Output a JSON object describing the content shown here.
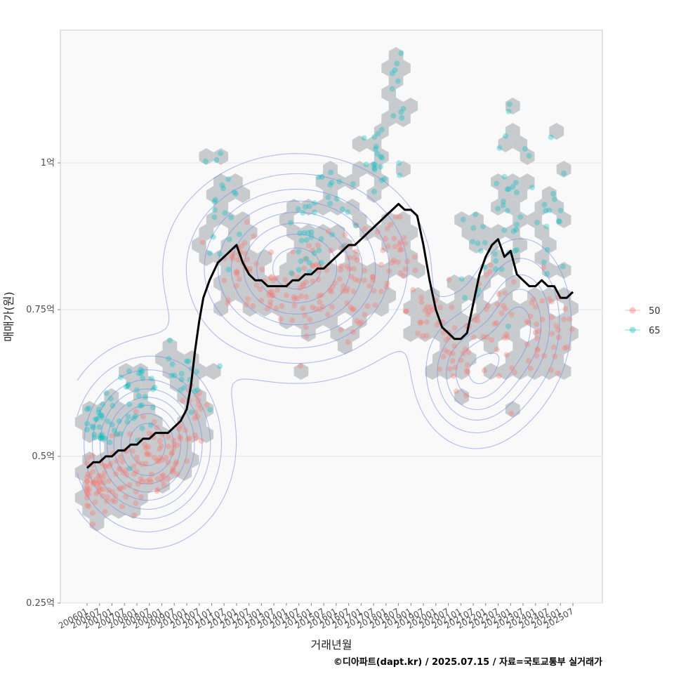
{
  "chart_data": {
    "type": "scatter",
    "title": "",
    "xlabel": "거래년월",
    "ylabel": "매매가(원)",
    "caption": "©디아파트(dapt.kr) / 2025.07.15 / 자료=국토교통부 실거래가",
    "y_unit": "억",
    "ylim": [
      0.25,
      1.22
    ],
    "y_ticks": [
      {
        "value": 0.25,
        "label": "0.25억"
      },
      {
        "value": 0.5,
        "label": "0.5억"
      },
      {
        "value": 0.75,
        "label": "0.75억"
      },
      {
        "value": 1.0,
        "label": "1억"
      }
    ],
    "x_start": "2006-01",
    "x_end": "2025-07",
    "x_tick_labels": [
      "200601",
      "200607",
      "200701",
      "200707",
      "200801",
      "200807",
      "200901",
      "200907",
      "201001",
      "201007",
      "201101",
      "201107",
      "201201",
      "201207",
      "201301",
      "201307",
      "201401",
      "201407",
      "201501",
      "201507",
      "201601",
      "201607",
      "201701",
      "201707",
      "201801",
      "201807",
      "201901",
      "201907",
      "202001",
      "202007",
      "202101",
      "202107",
      "202201",
      "202207",
      "202301",
      "202307",
      "202401",
      "202407",
      "202501",
      "202507"
    ],
    "legend": {
      "position": "right",
      "entries": [
        {
          "label": "50",
          "color": "#F8766D"
        },
        {
          "label": "65",
          "color": "#00BFC4"
        }
      ]
    },
    "trend_line": {
      "name": "moving average",
      "color": "#000000",
      "points": [
        [
          "2006-01",
          0.48
        ],
        [
          "2006-04",
          0.49
        ],
        [
          "2006-07",
          0.49
        ],
        [
          "2006-10",
          0.5
        ],
        [
          "2007-01",
          0.5
        ],
        [
          "2007-04",
          0.51
        ],
        [
          "2007-07",
          0.51
        ],
        [
          "2007-10",
          0.52
        ],
        [
          "2008-01",
          0.52
        ],
        [
          "2008-04",
          0.53
        ],
        [
          "2008-07",
          0.53
        ],
        [
          "2008-10",
          0.54
        ],
        [
          "2009-01",
          0.54
        ],
        [
          "2009-04",
          0.54
        ],
        [
          "2009-07",
          0.55
        ],
        [
          "2009-10",
          0.56
        ],
        [
          "2010-01",
          0.58
        ],
        [
          "2010-03",
          0.62
        ],
        [
          "2010-05",
          0.68
        ],
        [
          "2010-07",
          0.73
        ],
        [
          "2010-09",
          0.77
        ],
        [
          "2010-12",
          0.8
        ],
        [
          "2011-04",
          0.83
        ],
        [
          "2011-07",
          0.84
        ],
        [
          "2011-10",
          0.85
        ],
        [
          "2012-01",
          0.86
        ],
        [
          "2012-04",
          0.83
        ],
        [
          "2012-07",
          0.81
        ],
        [
          "2012-10",
          0.8
        ],
        [
          "2013-01",
          0.8
        ],
        [
          "2013-04",
          0.79
        ],
        [
          "2013-07",
          0.79
        ],
        [
          "2013-10",
          0.79
        ],
        [
          "2014-01",
          0.79
        ],
        [
          "2014-04",
          0.8
        ],
        [
          "2014-07",
          0.8
        ],
        [
          "2014-10",
          0.81
        ],
        [
          "2015-01",
          0.81
        ],
        [
          "2015-04",
          0.82
        ],
        [
          "2015-07",
          0.82
        ],
        [
          "2015-10",
          0.83
        ],
        [
          "2016-01",
          0.84
        ],
        [
          "2016-04",
          0.85
        ],
        [
          "2016-07",
          0.86
        ],
        [
          "2016-10",
          0.86
        ],
        [
          "2017-01",
          0.87
        ],
        [
          "2017-04",
          0.88
        ],
        [
          "2017-07",
          0.89
        ],
        [
          "2017-10",
          0.9
        ],
        [
          "2018-01",
          0.91
        ],
        [
          "2018-04",
          0.92
        ],
        [
          "2018-07",
          0.93
        ],
        [
          "2018-10",
          0.92
        ],
        [
          "2019-01",
          0.92
        ],
        [
          "2019-04",
          0.91
        ],
        [
          "2019-07",
          0.86
        ],
        [
          "2019-10",
          0.8
        ],
        [
          "2020-01",
          0.75
        ],
        [
          "2020-04",
          0.72
        ],
        [
          "2020-07",
          0.71
        ],
        [
          "2020-10",
          0.7
        ],
        [
          "2021-01",
          0.7
        ],
        [
          "2021-04",
          0.71
        ],
        [
          "2021-07",
          0.76
        ],
        [
          "2021-10",
          0.81
        ],
        [
          "2022-01",
          0.84
        ],
        [
          "2022-04",
          0.86
        ],
        [
          "2022-07",
          0.87
        ],
        [
          "2022-10",
          0.84
        ],
        [
          "2023-01",
          0.85
        ],
        [
          "2023-04",
          0.81
        ],
        [
          "2023-07",
          0.8
        ],
        [
          "2023-10",
          0.79
        ],
        [
          "2024-01",
          0.79
        ],
        [
          "2024-04",
          0.8
        ],
        [
          "2024-07",
          0.79
        ],
        [
          "2024-10",
          0.79
        ],
        [
          "2025-01",
          0.77
        ],
        [
          "2025-04",
          0.77
        ],
        [
          "2025-07",
          0.78
        ]
      ]
    },
    "series": [
      {
        "name": "50",
        "color": "#F8766D",
        "clusters": [
          {
            "x": "2006-05",
            "y": 0.45,
            "sx": 4,
            "sy": 0.025,
            "n": 40
          },
          {
            "x": "2007-06",
            "y": 0.46,
            "sx": 8,
            "sy": 0.03,
            "n": 45
          },
          {
            "x": "2008-10",
            "y": 0.5,
            "sx": 8,
            "sy": 0.035,
            "n": 60
          },
          {
            "x": "2010-06",
            "y": 0.58,
            "sx": 4,
            "sy": 0.04,
            "n": 20
          },
          {
            "x": "2012-02",
            "y": 0.83,
            "sx": 5,
            "sy": 0.03,
            "n": 30
          },
          {
            "x": "2013-06",
            "y": 0.78,
            "sx": 6,
            "sy": 0.03,
            "n": 30
          },
          {
            "x": "2015-03",
            "y": 0.79,
            "sx": 7,
            "sy": 0.04,
            "n": 45
          },
          {
            "x": "2016-09",
            "y": 0.8,
            "sx": 6,
            "sy": 0.04,
            "n": 40
          },
          {
            "x": "2018-04",
            "y": 0.83,
            "sx": 6,
            "sy": 0.04,
            "n": 35
          },
          {
            "x": "2019-09",
            "y": 0.75,
            "sx": 5,
            "sy": 0.04,
            "n": 20
          },
          {
            "x": "2020-10",
            "y": 0.67,
            "sx": 6,
            "sy": 0.04,
            "n": 30
          },
          {
            "x": "2022-06",
            "y": 0.72,
            "sx": 6,
            "sy": 0.05,
            "n": 30
          },
          {
            "x": "2024-03",
            "y": 0.7,
            "sx": 6,
            "sy": 0.05,
            "n": 30
          },
          {
            "x": "2025-03",
            "y": 0.71,
            "sx": 3,
            "sy": 0.04,
            "n": 10
          }
        ]
      },
      {
        "name": "65",
        "color": "#00BFC4",
        "clusters": [
          {
            "x": "2006-08",
            "y": 0.56,
            "sx": 4,
            "sy": 0.02,
            "n": 30
          },
          {
            "x": "2008-01",
            "y": 0.6,
            "sx": 6,
            "sy": 0.03,
            "n": 30
          },
          {
            "x": "2009-10",
            "y": 0.63,
            "sx": 6,
            "sy": 0.03,
            "n": 20
          },
          {
            "x": "2011-06",
            "y": 0.93,
            "sx": 5,
            "sy": 0.05,
            "n": 20
          },
          {
            "x": "2014-09",
            "y": 0.86,
            "sx": 6,
            "sy": 0.04,
            "n": 25
          },
          {
            "x": "2016-01",
            "y": 0.93,
            "sx": 5,
            "sy": 0.04,
            "n": 15
          },
          {
            "x": "2017-09",
            "y": 1.0,
            "sx": 6,
            "sy": 0.05,
            "n": 20
          },
          {
            "x": "2018-07",
            "y": 1.12,
            "sx": 3,
            "sy": 0.05,
            "n": 10
          },
          {
            "x": "2021-10",
            "y": 0.85,
            "sx": 5,
            "sy": 0.05,
            "n": 15
          },
          {
            "x": "2023-01",
            "y": 0.95,
            "sx": 6,
            "sy": 0.08,
            "n": 25
          },
          {
            "x": "2024-05",
            "y": 0.9,
            "sx": 6,
            "sy": 0.08,
            "n": 20
          }
        ]
      }
    ],
    "density_peaks": [
      {
        "x": "2008-06",
        "y": 0.52,
        "sx": 18,
        "sy": 0.075,
        "w": 1.0
      },
      {
        "x": "2014-06",
        "y": 0.82,
        "sx": 28,
        "sy": 0.085,
        "w": 0.85
      },
      {
        "x": "2021-08",
        "y": 0.64,
        "sx": 14,
        "sy": 0.06,
        "w": 0.55
      },
      {
        "x": "2023-06",
        "y": 0.73,
        "sx": 12,
        "sy": 0.07,
        "w": 0.45
      }
    ]
  }
}
